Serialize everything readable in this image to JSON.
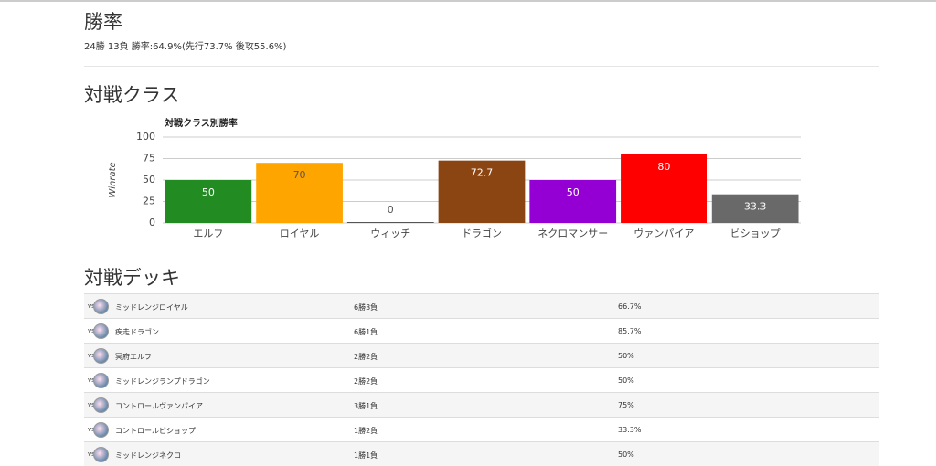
{
  "header": {
    "title": "勝率",
    "summary": "24勝 13負 勝率:64.9%(先行73.7% 後攻55.6%)"
  },
  "class_section": {
    "title": "対戦クラス"
  },
  "chart_data": {
    "type": "bar",
    "title": "対戦クラス別勝率",
    "y_label": "Winrate",
    "categories": [
      "エルフ",
      "ロイヤル",
      "ウィッチ",
      "ドラゴン",
      "ネクロマンサー",
      "ヴァンパイア",
      "ビショップ"
    ],
    "values": [
      50,
      70,
      0,
      72.7,
      50,
      80,
      33.3
    ],
    "colors": [
      "#228b22",
      "#ffa500",
      "#555555",
      "#8b4513",
      "#9400d3",
      "#ff0000",
      "#696969"
    ],
    "ylim": [
      0,
      100
    ],
    "yticks": [
      0,
      25,
      50,
      75,
      100
    ],
    "grid": true
  },
  "deck_section": {
    "title": "対戦デッキ",
    "vs_label": "vs",
    "rows": [
      [
        "ミッドレンジロイヤル",
        "6勝3負",
        "66.7%"
      ],
      [
        "疾走ドラゴン",
        "6勝1負",
        "85.7%"
      ],
      [
        "冥府エルフ",
        "2勝2負",
        "50%"
      ],
      [
        "ミッドレンジランプドラゴン",
        "2勝2負",
        "50%"
      ],
      [
        "コントロールヴァンパイア",
        "3勝1負",
        "75%"
      ],
      [
        "コントロールビショップ",
        "1勝2負",
        "33.3%"
      ],
      [
        "ミッドレンジネクロ",
        "1勝1負",
        "50%"
      ]
    ]
  }
}
